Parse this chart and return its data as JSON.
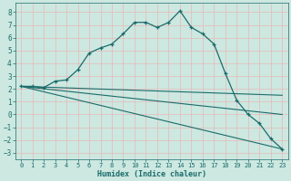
{
  "xlabel": "Humidex (Indice chaleur)",
  "background_color": "#cce8e0",
  "grid_color": "#e8b8b8",
  "line_color": "#1a6b6b",
  "xlim": [
    -0.5,
    23.5
  ],
  "ylim": [
    -3.5,
    8.7
  ],
  "xticks": [
    0,
    1,
    2,
    3,
    4,
    5,
    6,
    7,
    8,
    9,
    10,
    11,
    12,
    13,
    14,
    15,
    16,
    17,
    18,
    19,
    20,
    21,
    22,
    23
  ],
  "yticks": [
    -3,
    -2,
    -1,
    0,
    1,
    2,
    3,
    4,
    5,
    6,
    7,
    8
  ],
  "curve1_x": [
    0,
    1,
    2,
    3,
    4,
    5,
    6,
    7,
    8,
    9,
    10,
    11,
    12,
    13,
    14,
    15,
    16,
    17,
    18,
    19,
    20,
    21,
    22,
    23
  ],
  "curve1_y": [
    2.2,
    2.2,
    2.1,
    2.6,
    2.7,
    3.5,
    4.8,
    5.2,
    5.5,
    6.3,
    7.2,
    7.2,
    6.8,
    7.2,
    8.1,
    6.8,
    6.3,
    5.5,
    3.2,
    1.1,
    0.0,
    -0.7,
    -1.9,
    -2.7
  ],
  "line2_x": [
    0,
    23
  ],
  "line2_y": [
    2.2,
    1.5
  ],
  "line3_x": [
    0,
    23
  ],
  "line3_y": [
    2.2,
    0.0
  ],
  "line4_x": [
    0,
    23
  ],
  "line4_y": [
    2.2,
    -2.7
  ]
}
